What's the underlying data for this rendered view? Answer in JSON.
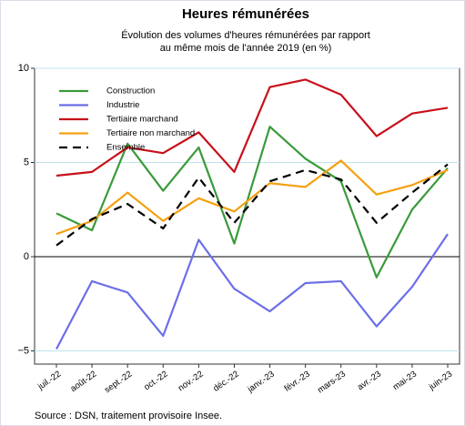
{
  "chart_data": {
    "type": "line",
    "title": "Heures rémunérées",
    "subtitle": [
      "Évolution des volumes d'heures rémunérées par rapport",
      "au même mois de l'année 2019 (en %)"
    ],
    "source": "Source : DSN, traitement provisoire Insee.",
    "categories": [
      "juil.-22",
      "août-22",
      "sept.-22",
      "oct.-22",
      "nov.-22",
      "déc.-22",
      "janv.-23",
      "févr.-23",
      "mars-23",
      "avr.-23",
      "mai-23",
      "juin-23"
    ],
    "series": [
      {
        "name": "Construction",
        "color": "#3a9a3a",
        "values": [
          2.3,
          1.4,
          6.0,
          3.5,
          5.8,
          0.7,
          6.9,
          5.2,
          4.0,
          -1.1,
          2.5,
          4.7
        ]
      },
      {
        "name": "Industrie",
        "color": "#6b6fe8",
        "values": [
          -4.9,
          -1.3,
          -1.9,
          -4.2,
          0.9,
          -1.7,
          -2.9,
          -1.4,
          -1.3,
          -3.7,
          -1.6,
          1.2
        ]
      },
      {
        "name": "Tertiaire marchand",
        "color": "#c8101a",
        "values": [
          4.3,
          4.5,
          5.8,
          5.5,
          6.6,
          4.5,
          9.0,
          9.4,
          8.6,
          6.4,
          7.6,
          7.9
        ]
      },
      {
        "name": "Tertiaire non marchand",
        "color": "#f5a00f",
        "values": [
          1.2,
          1.9,
          3.4,
          1.9,
          3.1,
          2.4,
          3.9,
          3.7,
          5.1,
          3.3,
          3.8,
          4.6
        ]
      },
      {
        "name": "Ensemble",
        "color": "#000000",
        "dashed": true,
        "values": [
          0.6,
          2.0,
          2.8,
          1.5,
          4.2,
          1.8,
          4.0,
          4.6,
          4.1,
          1.8,
          3.4,
          4.9
        ]
      }
    ],
    "ylim": [
      -5.7,
      10
    ],
    "yticks": [
      {
        "value": -5,
        "label": "−5"
      },
      0,
      5,
      10
    ],
    "grid": true,
    "legend": "top-left"
  }
}
